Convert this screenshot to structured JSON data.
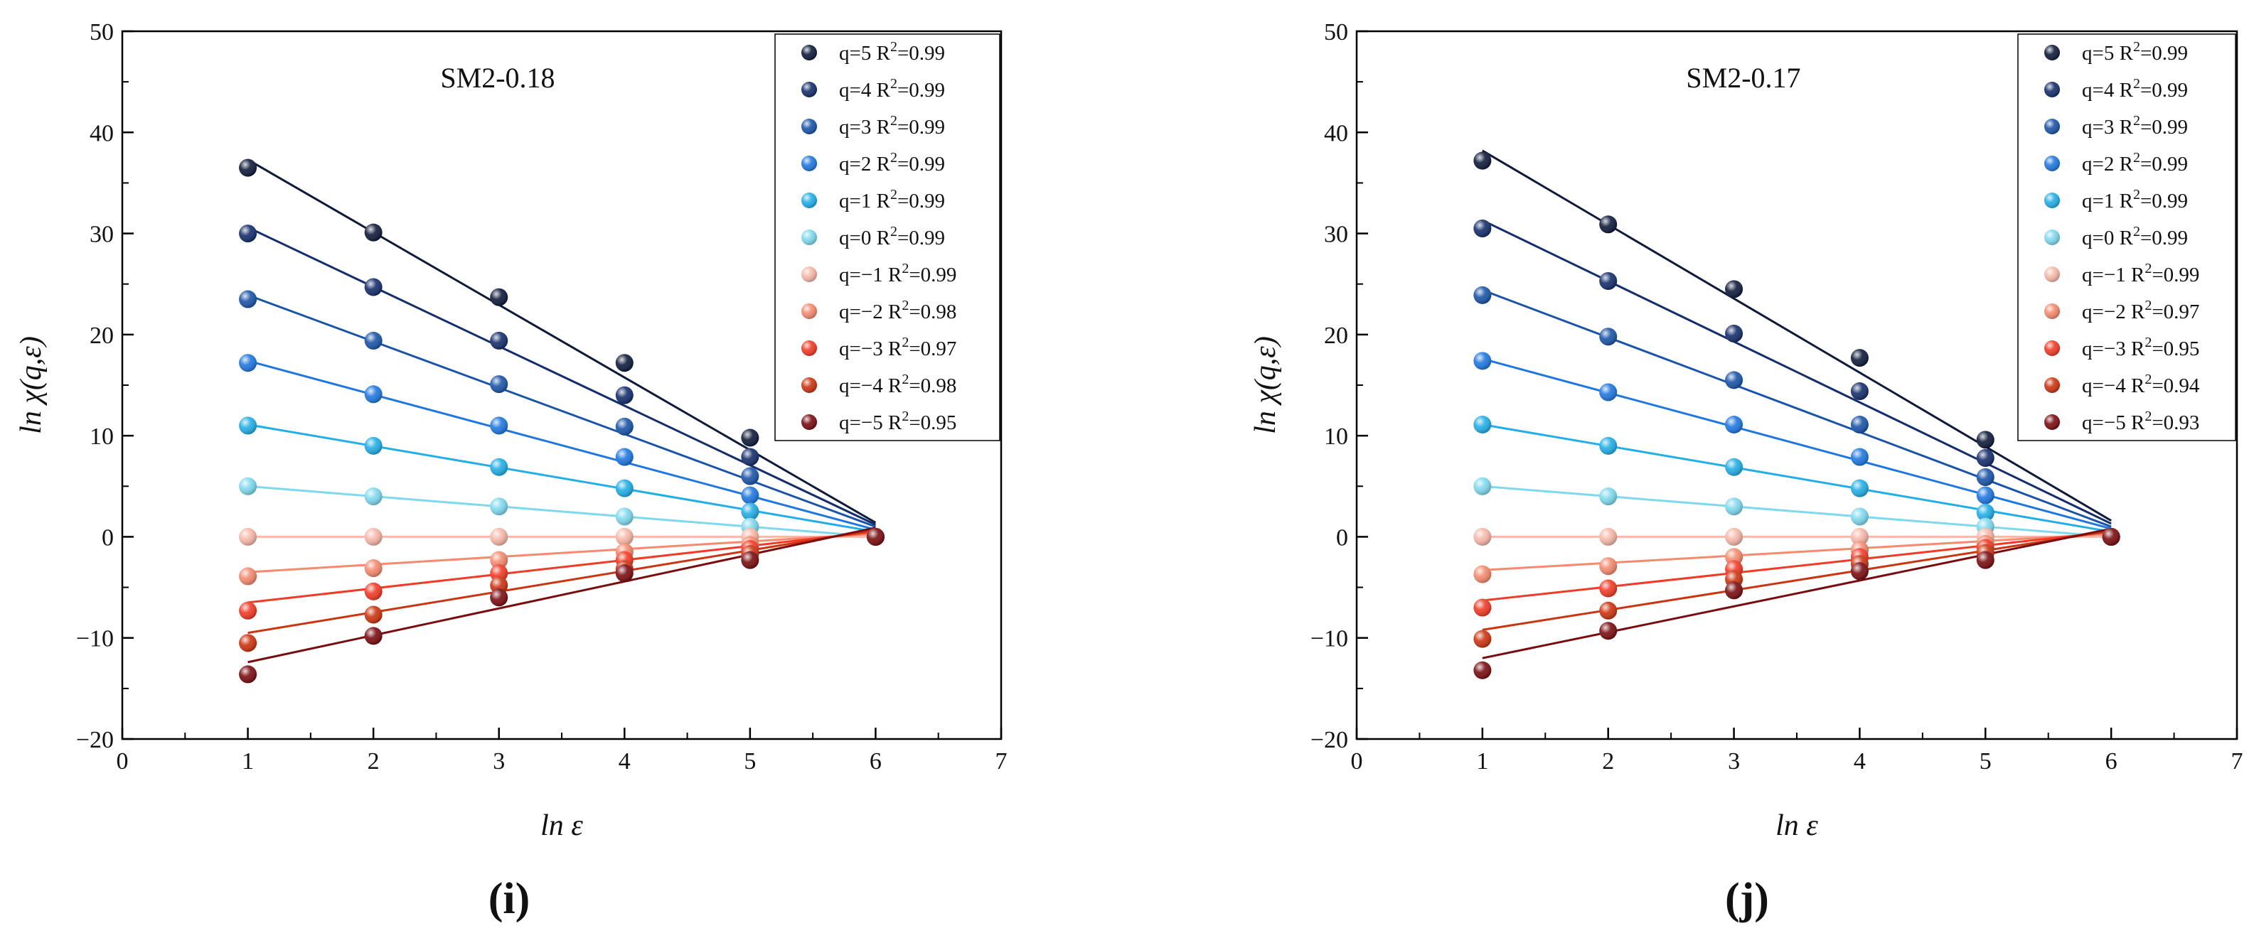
{
  "chart_data": [
    {
      "type": "scatter",
      "panel_label": "(i)",
      "title": "SM2-0.18",
      "xlabel": "ln ε",
      "ylabel": "ln χ(q,ε)",
      "xlim": [
        0,
        7
      ],
      "ylim": [
        -20,
        50
      ],
      "xticks": [
        0,
        1,
        2,
        3,
        4,
        5,
        6,
        7
      ],
      "yticks": [
        -20,
        -10,
        0,
        10,
        20,
        30,
        40,
        50
      ],
      "x": [
        1,
        2,
        3,
        4,
        5,
        6
      ],
      "legend_position": "top-right",
      "series": [
        {
          "name": "q=5",
          "r2": "0.99",
          "color": "#0e1a3a",
          "values": [
            36.5,
            30.1,
            23.7,
            17.2,
            9.8,
            0.0
          ],
          "fit": [
            37.3,
            1.4
          ]
        },
        {
          "name": "q=4",
          "r2": "0.99",
          "color": "#142d6b",
          "values": [
            30.0,
            24.7,
            19.4,
            14.0,
            7.9,
            0.0
          ],
          "fit": [
            30.6,
            1.2
          ]
        },
        {
          "name": "q=3",
          "r2": "0.99",
          "color": "#1a54a8",
          "values": [
            23.5,
            19.4,
            15.1,
            10.9,
            6.0,
            0.0
          ],
          "fit": [
            23.9,
            1.0
          ]
        },
        {
          "name": "q=2",
          "r2": "0.99",
          "color": "#1f77e0",
          "values": [
            17.2,
            14.1,
            11.0,
            7.9,
            4.1,
            0.0
          ],
          "fit": [
            17.4,
            0.7
          ]
        },
        {
          "name": "q=1",
          "r2": "0.99",
          "color": "#22aee6",
          "values": [
            11.0,
            9.0,
            6.9,
            4.8,
            2.5,
            0.0
          ],
          "fit": [
            11.1,
            0.5
          ]
        },
        {
          "name": "q=0",
          "r2": "0.99",
          "color": "#7fd9ee",
          "values": [
            5.0,
            4.0,
            3.0,
            2.0,
            1.0,
            0.0
          ],
          "fit": [
            5.0,
            0.0
          ]
        },
        {
          "name": "q=−1",
          "r2": "0.99",
          "color": "#f7b8a8",
          "values": [
            0.0,
            0.0,
            0.0,
            0.0,
            0.0,
            0.0
          ],
          "fit": [
            0.0,
            0.0
          ]
        },
        {
          "name": "q=−2",
          "r2": "0.98",
          "color": "#f58a6e",
          "values": [
            -3.9,
            -3.1,
            -2.3,
            -1.5,
            -0.8,
            0.0
          ],
          "fit": [
            -3.5,
            0.3
          ]
        },
        {
          "name": "q=−3",
          "r2": "0.97",
          "color": "#f23a26",
          "values": [
            -7.3,
            -5.4,
            -3.6,
            -2.3,
            -1.2,
            0.0
          ],
          "fit": [
            -6.5,
            0.5
          ]
        },
        {
          "name": "q=−4",
          "r2": "0.98",
          "color": "#cc3410",
          "values": [
            -10.5,
            -7.7,
            -4.8,
            -3.2,
            -1.7,
            0.0
          ],
          "fit": [
            -9.5,
            0.7
          ]
        },
        {
          "name": "q=−5",
          "r2": "0.95",
          "color": "#7a0c10",
          "values": [
            -13.6,
            -9.8,
            -6.0,
            -3.6,
            -2.3,
            0.0
          ],
          "fit": [
            -12.4,
            0.9
          ]
        }
      ]
    },
    {
      "type": "scatter",
      "panel_label": "(j)",
      "title": "SM2-0.17",
      "xlabel": "ln ε",
      "ylabel": "ln χ(q,ε)",
      "xlim": [
        0,
        7
      ],
      "ylim": [
        -20,
        50
      ],
      "xticks": [
        0,
        1,
        2,
        3,
        4,
        5,
        6,
        7
      ],
      "yticks": [
        -20,
        -10,
        0,
        10,
        20,
        30,
        40,
        50
      ],
      "x": [
        1,
        2,
        3,
        4,
        5,
        6
      ],
      "legend_position": "top-right",
      "series": [
        {
          "name": "q=5",
          "r2": "0.99",
          "color": "#0e1a3a",
          "values": [
            37.2,
            30.9,
            24.5,
            17.7,
            9.6,
            0.0
          ],
          "fit": [
            38.2,
            1.6
          ]
        },
        {
          "name": "q=4",
          "r2": "0.99",
          "color": "#142d6b",
          "values": [
            30.5,
            25.3,
            20.1,
            14.4,
            7.8,
            0.0
          ],
          "fit": [
            31.3,
            1.3
          ]
        },
        {
          "name": "q=3",
          "r2": "0.99",
          "color": "#1a54a8",
          "values": [
            23.9,
            19.8,
            15.5,
            11.1,
            5.9,
            0.0
          ],
          "fit": [
            24.4,
            1.0
          ]
        },
        {
          "name": "q=2",
          "r2": "0.99",
          "color": "#1f77e0",
          "values": [
            17.4,
            14.3,
            11.1,
            7.9,
            4.1,
            0.0
          ],
          "fit": [
            17.6,
            0.8
          ]
        },
        {
          "name": "q=1",
          "r2": "0.99",
          "color": "#22aee6",
          "values": [
            11.1,
            9.0,
            6.9,
            4.8,
            2.4,
            0.0
          ],
          "fit": [
            11.1,
            0.5
          ]
        },
        {
          "name": "q=0",
          "r2": "0.99",
          "color": "#7fd9ee",
          "values": [
            5.0,
            4.0,
            3.0,
            2.0,
            1.0,
            0.0
          ],
          "fit": [
            5.0,
            0.0
          ]
        },
        {
          "name": "q=−1",
          "r2": "0.99",
          "color": "#f7b8a8",
          "values": [
            0.0,
            0.0,
            0.0,
            0.0,
            0.0,
            0.0
          ],
          "fit": [
            0.0,
            0.0
          ]
        },
        {
          "name": "q=−2",
          "r2": "0.97",
          "color": "#f58a6e",
          "values": [
            -3.7,
            -2.9,
            -2.0,
            -1.3,
            -0.7,
            0.0
          ],
          "fit": [
            -3.3,
            0.3
          ]
        },
        {
          "name": "q=−3",
          "r2": "0.95",
          "color": "#f23a26",
          "values": [
            -7.0,
            -5.1,
            -3.2,
            -2.0,
            -1.1,
            0.0
          ],
          "fit": [
            -6.3,
            0.5
          ]
        },
        {
          "name": "q=−4",
          "r2": "0.94",
          "color": "#cc3410",
          "values": [
            -10.1,
            -7.3,
            -4.2,
            -2.7,
            -1.6,
            0.0
          ],
          "fit": [
            -9.2,
            0.6
          ]
        },
        {
          "name": "q=−5",
          "r2": "0.93",
          "color": "#7a0c10",
          "values": [
            -13.2,
            -9.3,
            -5.3,
            -3.4,
            -2.3,
            0.0
          ],
          "fit": [
            -12.0,
            0.8
          ]
        }
      ]
    }
  ]
}
